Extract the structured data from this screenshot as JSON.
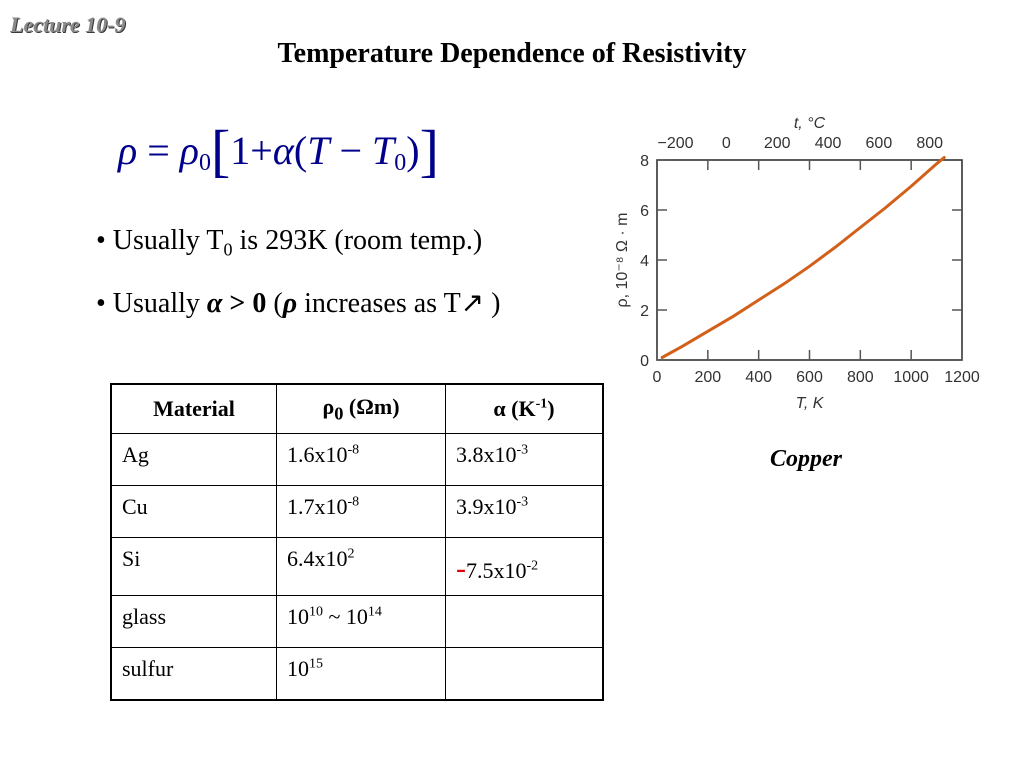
{
  "lecture_tag": "Lecture 10-9",
  "title": "Temperature Dependence of Resistivity",
  "formula": {
    "rho": "ρ",
    "eq": "=",
    "rho0": "ρ",
    "sub0": "0",
    "lbr": "[",
    "one": "1",
    "plus": "+",
    "alpha": "α",
    "lp": "(",
    "T": "T",
    "minus": "−",
    "T0": "T",
    "sub0b": "0",
    "rp": ")",
    "rbr": "]"
  },
  "bullets": {
    "b1_pre": "• Usually T",
    "b1_sub": "0",
    "b1_post": " is 293K (room temp.)",
    "b2_pre": "• Usually ",
    "b2_alpha": "α",
    "b2_gt": " > 0",
    "b2_open": "  (",
    "b2_rho": "ρ",
    "b2_post": " increases as T",
    "b2_arrow": "↗",
    "b2_close": " )"
  },
  "table": {
    "headers": {
      "material": "Material",
      "rho0_sym": "ρ",
      "rho0_sub": "0",
      "rho0_unit": " (Ωm)",
      "alpha_sym": "α",
      "alpha_unit": " (K",
      "alpha_exp": "-1",
      "alpha_close": ")"
    },
    "rows": [
      {
        "material": "Ag",
        "rho_base": "1.6x10",
        "rho_exp": "-8",
        "alpha_sign": "",
        "alpha_base": "3.8x10",
        "alpha_exp": "-3"
      },
      {
        "material": "Cu",
        "rho_base": "1.7x10",
        "rho_exp": "-8",
        "alpha_sign": "",
        "alpha_base": "3.9x10",
        "alpha_exp": "-3"
      },
      {
        "material": "Si",
        "rho_base": "6.4x10",
        "rho_exp": "2",
        "alpha_sign": "-",
        "alpha_base": "7.5x10",
        "alpha_exp": "-2"
      },
      {
        "material": "glass",
        "rho_base": "10",
        "rho_exp": "10",
        "rho_mid": " ~ 10",
        "rho_exp2": "14",
        "alpha_sign": "",
        "alpha_base": "",
        "alpha_exp": ""
      },
      {
        "material": "sulfur",
        "rho_base": "10",
        "rho_exp": "15",
        "alpha_sign": "",
        "alpha_base": "",
        "alpha_exp": ""
      }
    ]
  },
  "colors": {
    "curve": "#d2601a",
    "formula": "#00008b",
    "negative": "#e00000",
    "lecture_tag": "#8a8a8a"
  },
  "chart_data": {
    "type": "line",
    "title": "",
    "xlabel": "T, K",
    "ylabel": "ρ, 10⁻⁸ Ω · m",
    "x2label": "t, °C",
    "xlim": [
      0,
      1200
    ],
    "ylim": [
      0,
      8
    ],
    "x_ticks": [
      "0",
      "200",
      "400",
      "600",
      "800",
      "1000",
      "1200"
    ],
    "y_ticks": [
      "0",
      "2",
      "4",
      "6",
      "8"
    ],
    "x2_ticks": [
      "−200",
      "0",
      "200",
      "400",
      "600",
      "800"
    ],
    "x": [
      20,
      100,
      200,
      300,
      400,
      500,
      600,
      700,
      800,
      900,
      1000,
      1100,
      1130
    ],
    "y": [
      0.1,
      0.55,
      1.15,
      1.75,
      2.4,
      3.05,
      3.75,
      4.5,
      5.3,
      6.1,
      6.95,
      7.85,
      8.1
    ],
    "grid": false,
    "legend": "none"
  },
  "caption": "Copper"
}
